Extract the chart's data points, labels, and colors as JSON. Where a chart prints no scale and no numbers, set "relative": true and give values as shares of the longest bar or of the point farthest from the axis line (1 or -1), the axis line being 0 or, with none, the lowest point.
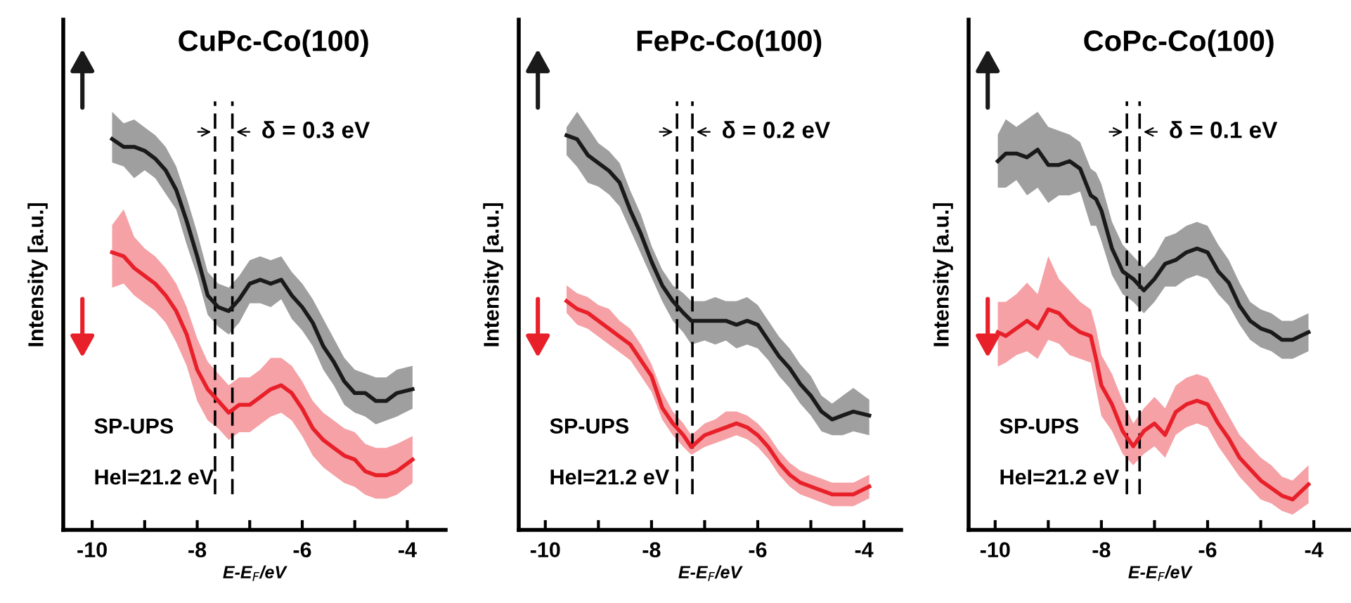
{
  "chart_data": [
    {
      "type": "line",
      "title": "CuPc-Co(100)",
      "xlabel": "E-E$_{F}$/eV",
      "ylabel": "Intensity [a.u.]",
      "relative": true,
      "tick_labels": "x",
      "grid": false,
      "legend": false,
      "xlim": [
        -10.55,
        -3.27
      ],
      "xticks": [
        -10,
        {
          "value": -9,
          "label": null
        },
        -8,
        {
          "value": -7,
          "label": null
        },
        -6,
        {
          "value": -5,
          "label": null
        },
        -4
      ],
      "x": [
        -9.62,
        -9.4,
        -9.2,
        -9.0,
        -8.8,
        -8.6,
        -8.4,
        -8.2,
        -8.0,
        -7.8,
        -7.6,
        -7.4,
        -7.2,
        -7.0,
        -6.8,
        -6.6,
        -6.4,
        -6.2,
        -6.0,
        -5.8,
        -5.6,
        -5.4,
        -5.2,
        -5.0,
        -4.8,
        -4.6,
        -4.4,
        -4.2,
        -3.9
      ],
      "series": [
        {
          "color": "#1a1a1a",
          "values": [
            1.0,
            0.98,
            0.98,
            0.97,
            0.95,
            0.92,
            0.87,
            0.79,
            0.7,
            0.6,
            0.57,
            0.56,
            0.59,
            0.63,
            0.64,
            0.63,
            0.64,
            0.6,
            0.57,
            0.53,
            0.47,
            0.43,
            0.38,
            0.35,
            0.35,
            0.33,
            0.33,
            0.35,
            0.36
          ],
          "lower": [
            0.94,
            0.93,
            0.9,
            0.92,
            0.9,
            0.86,
            0.82,
            0.73,
            0.65,
            0.55,
            0.52,
            0.5,
            0.53,
            0.58,
            0.58,
            0.57,
            0.59,
            0.54,
            0.51,
            0.47,
            0.41,
            0.37,
            0.32,
            0.3,
            0.29,
            0.27,
            0.28,
            0.29,
            0.31
          ],
          "upper": [
            1.07,
            1.04,
            1.05,
            1.03,
            1.01,
            0.98,
            0.93,
            0.85,
            0.76,
            0.66,
            0.63,
            0.62,
            0.65,
            0.69,
            0.7,
            0.69,
            0.7,
            0.66,
            0.63,
            0.59,
            0.54,
            0.49,
            0.44,
            0.41,
            0.4,
            0.39,
            0.39,
            0.41,
            0.42
          ]
        },
        {
          "color": "#e8202a",
          "values": [
            0.71,
            0.7,
            0.67,
            0.65,
            0.63,
            0.6,
            0.56,
            0.5,
            0.41,
            0.36,
            0.33,
            0.3,
            0.32,
            0.32,
            0.34,
            0.36,
            0.37,
            0.35,
            0.31,
            0.26,
            0.23,
            0.21,
            0.19,
            0.18,
            0.15,
            0.14,
            0.14,
            0.15,
            0.18
          ],
          "lower": [
            0.62,
            0.63,
            0.6,
            0.58,
            0.56,
            0.53,
            0.48,
            0.42,
            0.33,
            0.28,
            0.26,
            0.23,
            0.25,
            0.25,
            0.27,
            0.29,
            0.3,
            0.28,
            0.24,
            0.19,
            0.16,
            0.14,
            0.12,
            0.11,
            0.09,
            0.08,
            0.08,
            0.09,
            0.12
          ],
          "upper": [
            0.78,
            0.82,
            0.75,
            0.72,
            0.7,
            0.67,
            0.63,
            0.57,
            0.49,
            0.43,
            0.4,
            0.37,
            0.39,
            0.39,
            0.41,
            0.44,
            0.44,
            0.42,
            0.38,
            0.33,
            0.3,
            0.28,
            0.26,
            0.25,
            0.22,
            0.21,
            0.21,
            0.22,
            0.24
          ]
        }
      ],
      "ref_lines": [
        {
          "axis": "x",
          "value": -7.66,
          "line_style": "dashed",
          "color": "#000000"
        },
        {
          "axis": "x",
          "value": -7.33,
          "line_style": "dashed",
          "color": "#000000"
        }
      ],
      "annotations": [
        "δ = 0.3 eV",
        "SP-UPS",
        "HeI=21.2 eV"
      ]
    },
    {
      "type": "line",
      "title": "FePc-Co(100)",
      "xlabel": "E-E$_{F}$/eV",
      "ylabel": "Intensity [a.u.]",
      "relative": true,
      "tick_labels": "x",
      "grid": false,
      "legend": false,
      "xlim": [
        -10.5,
        -3.3
      ],
      "xticks": [
        -10,
        {
          "value": -9,
          "label": null
        },
        -8,
        {
          "value": -7,
          "label": null
        },
        -6,
        {
          "value": -5,
          "label": null
        },
        -4
      ],
      "x": [
        -9.6,
        -9.4,
        -9.2,
        -9.0,
        -8.8,
        -8.6,
        -8.4,
        -8.2,
        -8.0,
        -7.8,
        -7.6,
        -7.4,
        -7.25,
        -7.0,
        -6.8,
        -6.6,
        -6.4,
        -6.2,
        -6.0,
        -5.8,
        -5.6,
        -5.4,
        -5.2,
        -5.0,
        -4.8,
        -4.6,
        -4.4,
        -4.2,
        -3.9
      ],
      "series": [
        {
          "color": "#1a1a1a",
          "values": [
            1.0,
            0.99,
            0.95,
            0.93,
            0.91,
            0.88,
            0.81,
            0.75,
            0.68,
            0.62,
            0.58,
            0.55,
            0.53,
            0.53,
            0.53,
            0.53,
            0.52,
            0.53,
            0.52,
            0.48,
            0.44,
            0.41,
            0.37,
            0.34,
            0.3,
            0.28,
            0.29,
            0.3,
            0.29
          ],
          "lower": [
            0.95,
            0.92,
            0.88,
            0.87,
            0.85,
            0.82,
            0.76,
            0.7,
            0.64,
            0.58,
            0.53,
            0.5,
            0.47,
            0.48,
            0.47,
            0.48,
            0.46,
            0.47,
            0.46,
            0.43,
            0.39,
            0.36,
            0.32,
            0.29,
            0.25,
            0.24,
            0.24,
            0.25,
            0.24
          ],
          "upper": [
            1.02,
            1.06,
            1.02,
            0.98,
            0.96,
            0.93,
            0.86,
            0.8,
            0.72,
            0.66,
            0.62,
            0.6,
            0.58,
            0.58,
            0.59,
            0.58,
            0.58,
            0.59,
            0.57,
            0.53,
            0.49,
            0.46,
            0.42,
            0.39,
            0.34,
            0.32,
            0.34,
            0.36,
            0.33
          ]
        },
        {
          "color": "#e8202a",
          "values": [
            0.58,
            0.56,
            0.55,
            0.53,
            0.51,
            0.49,
            0.47,
            0.43,
            0.39,
            0.31,
            0.27,
            0.24,
            0.21,
            0.24,
            0.25,
            0.26,
            0.27,
            0.26,
            0.24,
            0.21,
            0.17,
            0.14,
            0.12,
            0.11,
            0.1,
            0.09,
            0.09,
            0.09,
            0.11
          ],
          "lower": [
            0.55,
            0.52,
            0.51,
            0.49,
            0.47,
            0.45,
            0.43,
            0.39,
            0.35,
            0.28,
            0.24,
            0.21,
            0.19,
            0.21,
            0.22,
            0.23,
            0.24,
            0.23,
            0.21,
            0.18,
            0.14,
            0.11,
            0.09,
            0.08,
            0.07,
            0.06,
            0.06,
            0.06,
            0.08
          ],
          "upper": [
            0.62,
            0.6,
            0.59,
            0.57,
            0.56,
            0.53,
            0.51,
            0.47,
            0.42,
            0.35,
            0.3,
            0.27,
            0.24,
            0.27,
            0.28,
            0.3,
            0.3,
            0.29,
            0.27,
            0.24,
            0.2,
            0.17,
            0.15,
            0.14,
            0.13,
            0.12,
            0.12,
            0.12,
            0.14
          ]
        }
      ],
      "ref_lines": [
        {
          "axis": "x",
          "value": -7.52,
          "line_style": "dashed",
          "color": "#000000"
        },
        {
          "axis": "x",
          "value": -7.23,
          "line_style": "dashed",
          "color": "#000000"
        }
      ],
      "annotations": [
        "δ = 0.2 eV",
        "SP-UPS",
        "HeI=21.2 eV"
      ]
    },
    {
      "type": "line",
      "title": "CoPc-Co(100)",
      "xlabel": "E-E$_{F}$/eV",
      "ylabel": "Intensity [a.u.]",
      "relative": true,
      "tick_labels": "x",
      "grid": false,
      "legend": false,
      "xlim": [
        -10.5,
        -3.3
      ],
      "xticks": [
        -10,
        {
          "value": -9,
          "label": null
        },
        -8,
        {
          "value": -7,
          "label": null
        },
        -6,
        {
          "value": -5,
          "label": null
        },
        -4
      ],
      "x": [
        -9.95,
        -9.8,
        -9.6,
        -9.4,
        -9.2,
        -9.0,
        -8.8,
        -8.6,
        -8.4,
        -8.2,
        -8.1,
        -8.0,
        -7.8,
        -7.6,
        -7.4,
        -7.2,
        -7.0,
        -6.8,
        -6.6,
        -6.4,
        -6.2,
        -6.0,
        -5.8,
        -5.6,
        -5.4,
        -5.2,
        -5.0,
        -4.8,
        -4.6,
        -4.4,
        -4.1
      ],
      "series": [
        {
          "color": "#1a1a1a",
          "values": [
            0.97,
            0.99,
            0.99,
            0.98,
            1.0,
            0.96,
            0.96,
            0.97,
            0.95,
            0.88,
            0.87,
            0.84,
            0.74,
            0.68,
            0.66,
            0.63,
            0.66,
            0.7,
            0.71,
            0.73,
            0.74,
            0.73,
            0.68,
            0.65,
            0.59,
            0.55,
            0.53,
            0.52,
            0.5,
            0.5,
            0.52
          ],
          "lower": [
            0.9,
            0.9,
            0.92,
            0.88,
            0.9,
            0.86,
            0.88,
            0.88,
            0.89,
            0.8,
            0.8,
            0.76,
            0.67,
            0.62,
            0.6,
            0.57,
            0.6,
            0.64,
            0.64,
            0.66,
            0.67,
            0.66,
            0.62,
            0.59,
            0.54,
            0.5,
            0.48,
            0.47,
            0.45,
            0.45,
            0.47
          ],
          "upper": [
            1.04,
            1.08,
            1.06,
            1.08,
            1.1,
            1.06,
            1.05,
            1.04,
            1.02,
            0.95,
            0.94,
            0.91,
            0.81,
            0.75,
            0.72,
            0.69,
            0.72,
            0.77,
            0.78,
            0.8,
            0.81,
            0.8,
            0.75,
            0.71,
            0.65,
            0.6,
            0.58,
            0.57,
            0.55,
            0.55,
            0.57
          ]
        },
        {
          "color": "#e8202a",
          "values": [
            0.52,
            0.51,
            0.53,
            0.55,
            0.53,
            0.58,
            0.57,
            0.54,
            0.52,
            0.51,
            0.45,
            0.38,
            0.33,
            0.26,
            0.22,
            0.26,
            0.28,
            0.25,
            0.31,
            0.33,
            0.34,
            0.33,
            0.28,
            0.24,
            0.19,
            0.16,
            0.13,
            0.11,
            0.09,
            0.08,
            0.12
          ],
          "lower": [
            0.43,
            0.44,
            0.46,
            0.47,
            0.45,
            0.5,
            0.49,
            0.46,
            0.45,
            0.44,
            0.37,
            0.3,
            0.26,
            0.2,
            0.17,
            0.2,
            0.22,
            0.19,
            0.25,
            0.27,
            0.28,
            0.27,
            0.22,
            0.18,
            0.14,
            0.11,
            0.08,
            0.07,
            0.05,
            0.04,
            0.07
          ],
          "upper": [
            0.6,
            0.6,
            0.62,
            0.65,
            0.62,
            0.72,
            0.66,
            0.63,
            0.6,
            0.58,
            0.53,
            0.46,
            0.41,
            0.34,
            0.28,
            0.32,
            0.35,
            0.32,
            0.38,
            0.4,
            0.41,
            0.4,
            0.35,
            0.3,
            0.25,
            0.22,
            0.19,
            0.17,
            0.14,
            0.13,
            0.17
          ]
        }
      ],
      "ref_lines": [
        {
          "axis": "x",
          "value": -7.52,
          "line_style": "dashed",
          "color": "#000000"
        },
        {
          "axis": "x",
          "value": -7.28,
          "line_style": "dashed",
          "color": "#000000"
        }
      ],
      "annotations": [
        "δ = 0.1 eV",
        "SP-UPS",
        "HeI=21.2 eV"
      ]
    }
  ]
}
